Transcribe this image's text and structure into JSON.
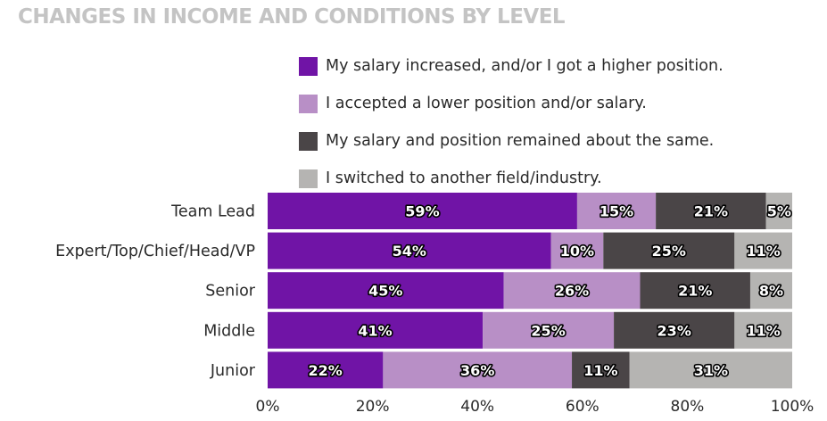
{
  "chart_data": {
    "type": "bar",
    "orientation": "horizontal",
    "stacked": true,
    "title": "CHANGES IN INCOME AND CONDITIONS BY LEVEL",
    "categories": [
      "Team Lead",
      "Expert/Top/Chief/Head/VP",
      "Senior",
      "Middle",
      "Junior"
    ],
    "series": [
      {
        "name": "My salary increased, and/or I got a higher position.",
        "color": "#7014a6",
        "values": [
          59,
          54,
          45,
          41,
          22
        ],
        "labels": [
          "59%",
          "54%",
          "45%",
          "41%",
          "22%"
        ]
      },
      {
        "name": "I accepted a lower position and/or salary.",
        "color": "#b88fc6",
        "values": [
          15,
          10,
          26,
          25,
          36
        ],
        "labels": [
          "15%",
          "10%",
          "26%",
          "25%",
          "36%"
        ]
      },
      {
        "name": "My salary and position remained about the same.",
        "color": "#4a4547",
        "values": [
          21,
          25,
          21,
          23,
          11
        ],
        "labels": [
          "21%",
          "25%",
          "21%",
          "23%",
          "11%"
        ]
      },
      {
        "name": "I switched to another field/industry.",
        "color": "#b5b4b2",
        "values": [
          5,
          11,
          8,
          11,
          31
        ],
        "labels": [
          "5%",
          "11%",
          "8%",
          "11%",
          "31%"
        ]
      }
    ],
    "x_ticks": [
      "0%",
      "20%",
      "40%",
      "60%",
      "80%",
      "100%"
    ],
    "xlim": [
      0,
      100
    ],
    "legend_position": "top-right",
    "grid": false
  }
}
